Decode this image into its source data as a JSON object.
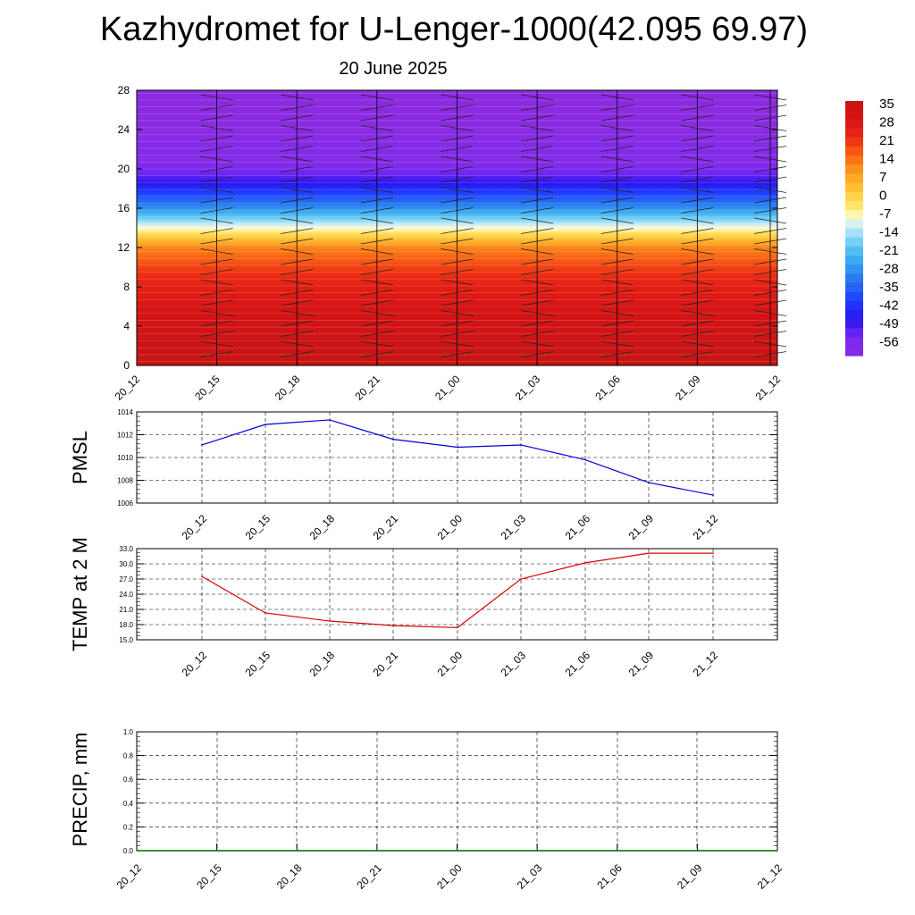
{
  "title": "Kazhydromet for U-Lenger-1000(42.095 69.97)",
  "subtitle": "20 June 2025",
  "colorbar_labels": [
    "35",
    "28",
    "21",
    "14",
    "7",
    "0",
    "-7",
    "-14",
    "-21",
    "-28",
    "-35",
    "-42",
    "-49",
    "-56"
  ],
  "chart_data": [
    {
      "type": "heatmap",
      "x_ticks": [
        "20_12",
        "20_15",
        "20_18",
        "20_21",
        "21_00",
        "21_03",
        "21_06",
        "21_09",
        "21_12"
      ],
      "y_ticks": [
        0,
        4,
        8,
        12,
        16,
        20,
        24,
        28
      ],
      "ylim": [
        0,
        28
      ],
      "colorbar": {
        "min": -56,
        "max": 35,
        "labels": [
          "35",
          "28",
          "21",
          "14",
          "7",
          "0",
          "-7",
          "-14",
          "-21",
          "-28",
          "-35",
          "-42",
          "-49",
          "-56"
        ]
      },
      "profile": {
        "heights": [
          0,
          2,
          4,
          6,
          8,
          10,
          12,
          13,
          14,
          15,
          16,
          17,
          18,
          19,
          20,
          21,
          22,
          23,
          24,
          28
        ],
        "temperature": [
          35,
          33,
          31,
          28,
          24,
          18,
          10,
          0,
          -10,
          -20,
          -30,
          -38,
          -45,
          -52,
          -58,
          -62,
          -60,
          -62,
          -63,
          -63
        ]
      }
    },
    {
      "type": "line",
      "ylabel": "PMSL",
      "x": [
        "20_12",
        "20_15",
        "20_18",
        "20_21",
        "21_00",
        "21_03",
        "21_06",
        "21_09",
        "21_12"
      ],
      "y_ticks": [
        "1006",
        "1008",
        "1010",
        "1012",
        "1014"
      ],
      "ylim": [
        1006,
        1014
      ],
      "series": [
        {
          "values": [
            1011.1,
            1012.9,
            1013.3,
            1011.6,
            1010.9,
            1011.1,
            1009.8,
            1007.8,
            1006.7
          ],
          "color": "#0000dd"
        }
      ]
    },
    {
      "type": "line",
      "ylabel": "TEMP at 2 M",
      "x": [
        "20_12",
        "20_15",
        "20_18",
        "20_21",
        "21_00",
        "21_03",
        "21_06",
        "21_09",
        "21_12"
      ],
      "y_ticks": [
        "15.0",
        "18.0",
        "21.0",
        "24.0",
        "27.0",
        "30.0",
        "33.0"
      ],
      "ylim": [
        15,
        33
      ],
      "series": [
        {
          "values": [
            27.5,
            20.3,
            18.7,
            17.8,
            17.4,
            27.0,
            30.2,
            32.1,
            32.1
          ],
          "color": "#dd0000"
        }
      ]
    },
    {
      "type": "line",
      "ylabel": "PRECIP, mm",
      "x_ticks": [
        "20_12",
        "20_15",
        "20_18",
        "20_21",
        "21_00",
        "21_03",
        "21_06",
        "21_09",
        "21_12"
      ],
      "y_ticks": [
        "0.0",
        "0.2",
        "0.4",
        "0.6",
        "0.8",
        "1.0"
      ],
      "ylim": [
        0,
        1
      ],
      "series": [
        {
          "values": [
            0,
            0,
            0,
            0,
            0,
            0,
            0,
            0,
            0
          ],
          "color": "#006400"
        }
      ]
    }
  ]
}
